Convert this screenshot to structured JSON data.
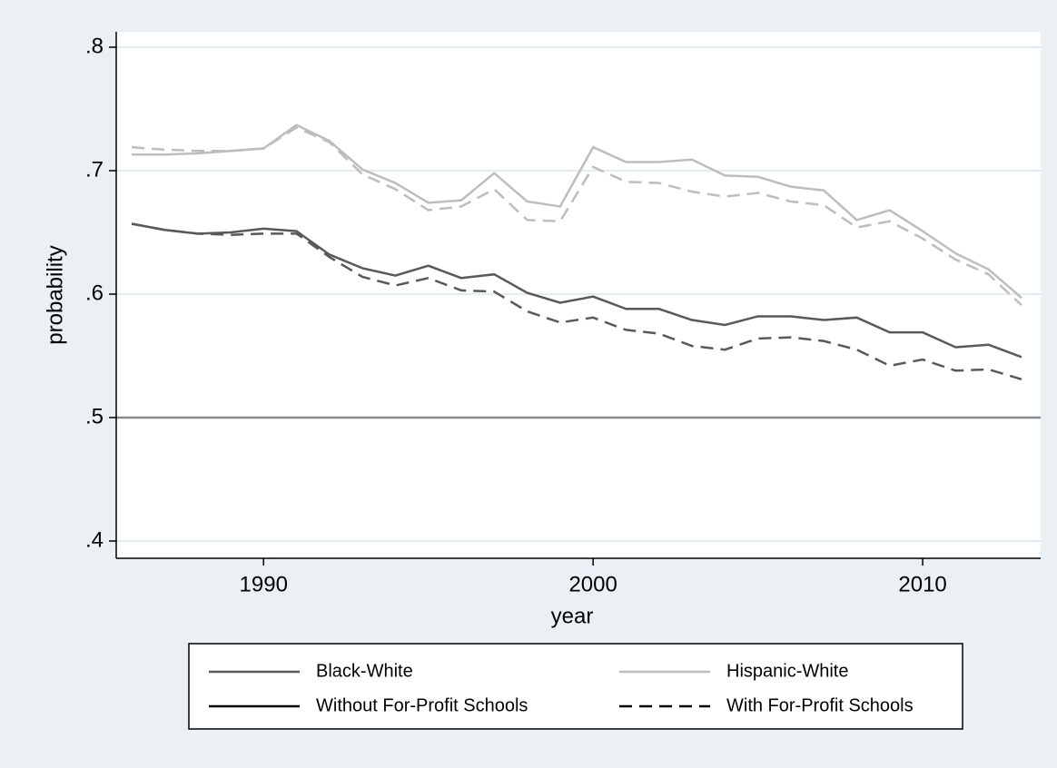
{
  "chart_data": {
    "type": "line",
    "x": [
      1986,
      1987,
      1988,
      1989,
      1990,
      1991,
      1992,
      1993,
      1994,
      1995,
      1996,
      1997,
      1998,
      1999,
      2000,
      2001,
      2002,
      2003,
      2004,
      2005,
      2006,
      2007,
      2008,
      2009,
      2010,
      2011,
      2012,
      2013
    ],
    "series": [
      {
        "color": "#bdbdbd",
        "dash": false,
        "values": [
          0.713,
          0.713,
          0.714,
          0.716,
          0.718,
          0.737,
          0.724,
          0.701,
          0.69,
          0.674,
          0.676,
          0.698,
          0.675,
          0.671,
          0.719,
          0.707,
          0.707,
          0.709,
          0.696,
          0.695,
          0.687,
          0.684,
          0.66,
          0.668,
          0.651,
          0.633,
          0.62,
          0.597
        ]
      },
      {
        "color": "#bdbdbd",
        "dash": true,
        "values": [
          0.719,
          0.717,
          0.716,
          0.716,
          0.718,
          0.735,
          0.723,
          0.697,
          0.685,
          0.668,
          0.671,
          0.685,
          0.66,
          0.659,
          0.703,
          0.691,
          0.69,
          0.683,
          0.679,
          0.682,
          0.675,
          0.672,
          0.654,
          0.659,
          0.645,
          0.628,
          0.616,
          0.591
        ]
      },
      {
        "color": "#595959",
        "dash": false,
        "values": [
          0.657,
          0.652,
          0.649,
          0.65,
          0.653,
          0.651,
          0.632,
          0.621,
          0.615,
          0.623,
          0.613,
          0.616,
          0.601,
          0.593,
          0.598,
          0.588,
          0.588,
          0.579,
          0.575,
          0.582,
          0.582,
          0.579,
          0.581,
          0.569,
          0.569,
          0.557,
          0.559,
          0.549
        ]
      },
      {
        "color": "#595959",
        "dash": true,
        "values": [
          0.657,
          0.652,
          0.649,
          0.648,
          0.649,
          0.649,
          0.63,
          0.614,
          0.607,
          0.613,
          0.603,
          0.602,
          0.586,
          0.577,
          0.581,
          0.571,
          0.568,
          0.558,
          0.555,
          0.564,
          0.565,
          0.562,
          0.555,
          0.542,
          0.547,
          0.538,
          0.539,
          0.531
        ]
      }
    ],
    "legend": [
      {
        "label": "Black-White",
        "color": "#595959",
        "dash": false
      },
      {
        "label": "Hispanic-White",
        "color": "#bdbdbd",
        "dash": false
      },
      {
        "label": "Without For-Profit Schools",
        "color": "#000000",
        "dash": false
      },
      {
        "label": "With For-Profit Schools",
        "color": "#000000",
        "dash": true
      }
    ],
    "xlabel": "year",
    "ylabel": "probability",
    "xlim": [
      1985.53,
      2013.58
    ],
    "xticks": [
      1990,
      2000,
      2010
    ],
    "ylim": [
      0.386,
      0.8125
    ],
    "yticks": [
      {
        "value": 0.4,
        "label": ".4"
      },
      {
        "value": 0.5,
        "label": ".5"
      },
      {
        "value": 0.6,
        "label": ".6"
      },
      {
        "value": 0.7,
        "label": ".7"
      },
      {
        "value": 0.8,
        "label": ".8"
      }
    ],
    "yline": 0.5,
    "grid": true
  }
}
